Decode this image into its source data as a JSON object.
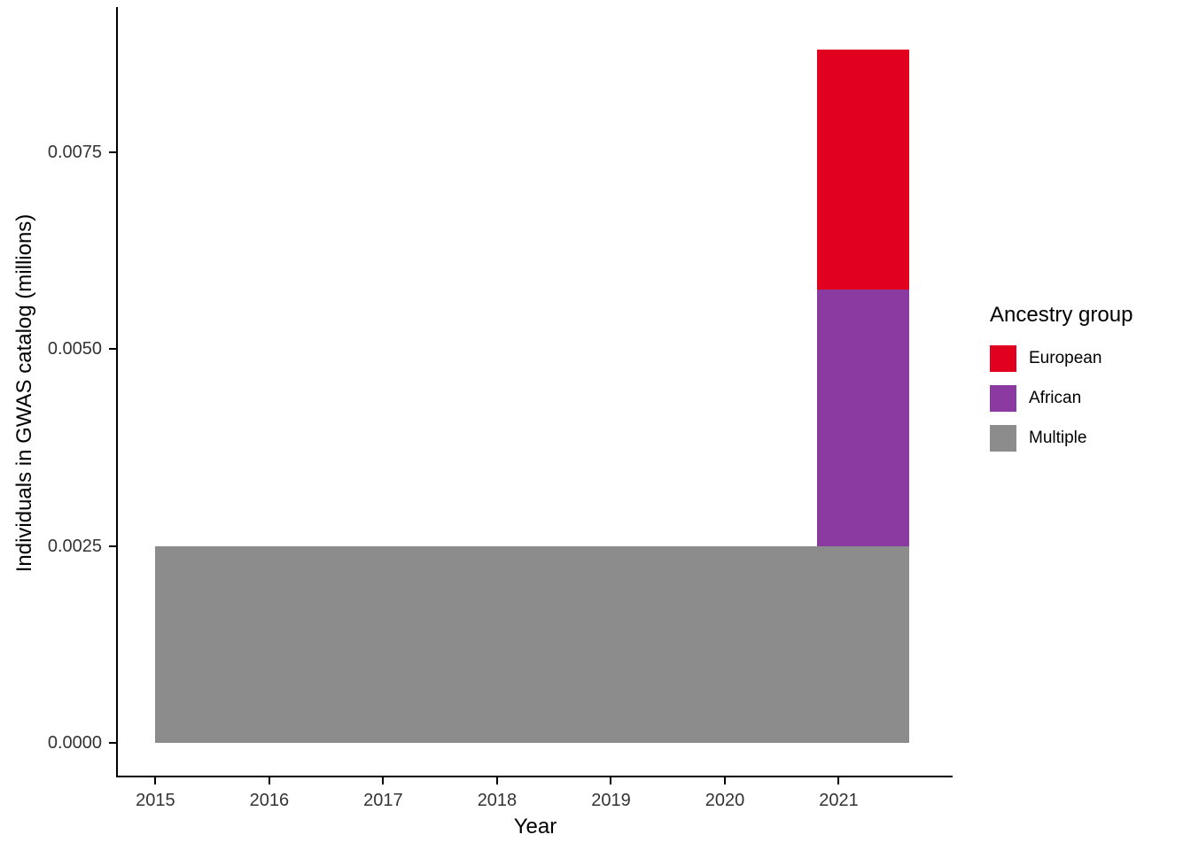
{
  "chart_data": {
    "type": "bar",
    "stacked": true,
    "title": "",
    "xlabel": "Year",
    "ylabel": "Individuals in GWAS catalog (millions)",
    "grid": false,
    "x_domain": [
      2014.67,
      2022.0
    ],
    "y_domain": [
      -0.00044,
      0.00932
    ],
    "x_ticks": [
      {
        "value": 2015,
        "label": "2015"
      },
      {
        "value": 2016,
        "label": "2016"
      },
      {
        "value": 2017,
        "label": "2017"
      },
      {
        "value": 2018,
        "label": "2018"
      },
      {
        "value": 2019,
        "label": "2019"
      },
      {
        "value": 2020,
        "label": "2020"
      },
      {
        "value": 2021,
        "label": "2021"
      }
    ],
    "y_ticks": [
      {
        "value": 0.0,
        "label": "0.0000"
      },
      {
        "value": 0.0025,
        "label": "0.0025"
      },
      {
        "value": 0.005,
        "label": "0.0050"
      },
      {
        "value": 0.0075,
        "label": "0.0075"
      }
    ],
    "legend": {
      "title": "Ancestry group",
      "position": "right",
      "entries": [
        {
          "label": "European",
          "color": "#E1001E"
        },
        {
          "label": "African",
          "color": "#8A3AA0"
        },
        {
          "label": "Multiple",
          "color": "#8C8C8C"
        }
      ]
    },
    "bars": [
      {
        "group": "Multiple",
        "x_from": 2015.0,
        "x_to": 2021.62,
        "y_from": 0.0,
        "y_to": 0.0025,
        "color": "#8C8C8C"
      },
      {
        "group": "African",
        "x_from": 2020.81,
        "x_to": 2021.62,
        "y_from": 0.0025,
        "y_to": 0.00575,
        "color": "#8A3AA0"
      },
      {
        "group": "European",
        "x_from": 2020.81,
        "x_to": 2021.62,
        "y_from": 0.00575,
        "y_to": 0.0088,
        "color": "#E1001E"
      }
    ],
    "series": [
      {
        "name": "European",
        "year": 2021,
        "value_millions": 0.00305
      },
      {
        "name": "African",
        "year": 2021,
        "value_millions": 0.00325
      },
      {
        "name": "Multiple",
        "years": [
          2015,
          2021
        ],
        "value_millions": 0.0025
      }
    ]
  }
}
